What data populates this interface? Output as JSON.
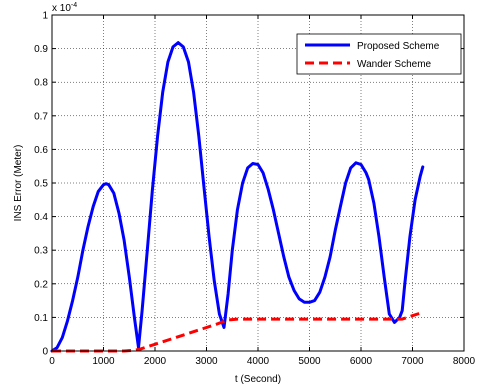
{
  "chart_data": {
    "type": "line",
    "title": "",
    "xlabel": "t (Second)",
    "ylabel": "INS Error (Meter)",
    "y_multiplier_label": "x 10",
    "y_multiplier_exponent": "-4",
    "xlim": [
      0,
      8000
    ],
    "ylim": [
      0,
      1
    ],
    "xticks": [
      0,
      1000,
      2000,
      3000,
      4000,
      5000,
      6000,
      7000,
      8000
    ],
    "yticks": [
      0,
      0.1,
      0.2,
      0.3,
      0.4,
      0.5,
      0.6,
      0.7,
      0.8,
      0.9,
      1
    ],
    "grid": true,
    "legend_position": "top-right",
    "series": [
      {
        "name": "Proposed Scheme",
        "color": "#0000ff",
        "style": "solid",
        "x": [
          0,
          100,
          200,
          300,
          400,
          500,
          600,
          700,
          800,
          900,
          1000,
          1050,
          1100,
          1200,
          1300,
          1400,
          1500,
          1600,
          1680,
          1750,
          1850,
          1950,
          2050,
          2150,
          2250,
          2350,
          2450,
          2550,
          2650,
          2750,
          2850,
          2950,
          3050,
          3150,
          3250,
          3340,
          3420,
          3500,
          3600,
          3700,
          3800,
          3900,
          4000,
          4100,
          4200,
          4300,
          4400,
          4500,
          4600,
          4700,
          4800,
          4900,
          5000,
          5100,
          5200,
          5300,
          5400,
          5500,
          5600,
          5700,
          5800,
          5900,
          6000,
          6100,
          6150,
          6250,
          6350,
          6450,
          6550,
          6650,
          6750,
          6800,
          6850,
          6950,
          7050,
          7150,
          7200
        ],
        "values": [
          0.0,
          0.01,
          0.04,
          0.09,
          0.15,
          0.22,
          0.3,
          0.37,
          0.43,
          0.475,
          0.495,
          0.498,
          0.495,
          0.47,
          0.41,
          0.33,
          0.22,
          0.1,
          0.01,
          0.12,
          0.3,
          0.48,
          0.64,
          0.77,
          0.86,
          0.905,
          0.918,
          0.905,
          0.86,
          0.77,
          0.64,
          0.49,
          0.34,
          0.21,
          0.11,
          0.07,
          0.17,
          0.3,
          0.42,
          0.5,
          0.545,
          0.558,
          0.555,
          0.53,
          0.48,
          0.42,
          0.35,
          0.28,
          0.22,
          0.18,
          0.155,
          0.145,
          0.145,
          0.15,
          0.175,
          0.22,
          0.28,
          0.36,
          0.43,
          0.5,
          0.545,
          0.56,
          0.555,
          0.53,
          0.51,
          0.44,
          0.34,
          0.22,
          0.11,
          0.085,
          0.1,
          0.12,
          0.2,
          0.34,
          0.45,
          0.52,
          0.548
        ]
      },
      {
        "name": "Wander Scheme",
        "color": "#ff0000",
        "style": "dashed",
        "x": [
          0,
          200,
          400,
          600,
          800,
          1000,
          1200,
          1400,
          1600,
          1700,
          1800,
          2000,
          2200,
          2400,
          2600,
          2800,
          3000,
          3200,
          3400,
          3600,
          4000,
          4500,
          5000,
          5500,
          6000,
          6500,
          6800,
          6900,
          7000,
          7100,
          7200
        ],
        "values": [
          0.0,
          0.0,
          0.0,
          0.0,
          0.0,
          0.0,
          0.0,
          0.0,
          0.002,
          0.005,
          0.01,
          0.02,
          0.03,
          0.04,
          0.05,
          0.06,
          0.07,
          0.08,
          0.092,
          0.095,
          0.095,
          0.095,
          0.095,
          0.095,
          0.095,
          0.095,
          0.095,
          0.1,
          0.105,
          0.11,
          0.115
        ]
      }
    ]
  }
}
